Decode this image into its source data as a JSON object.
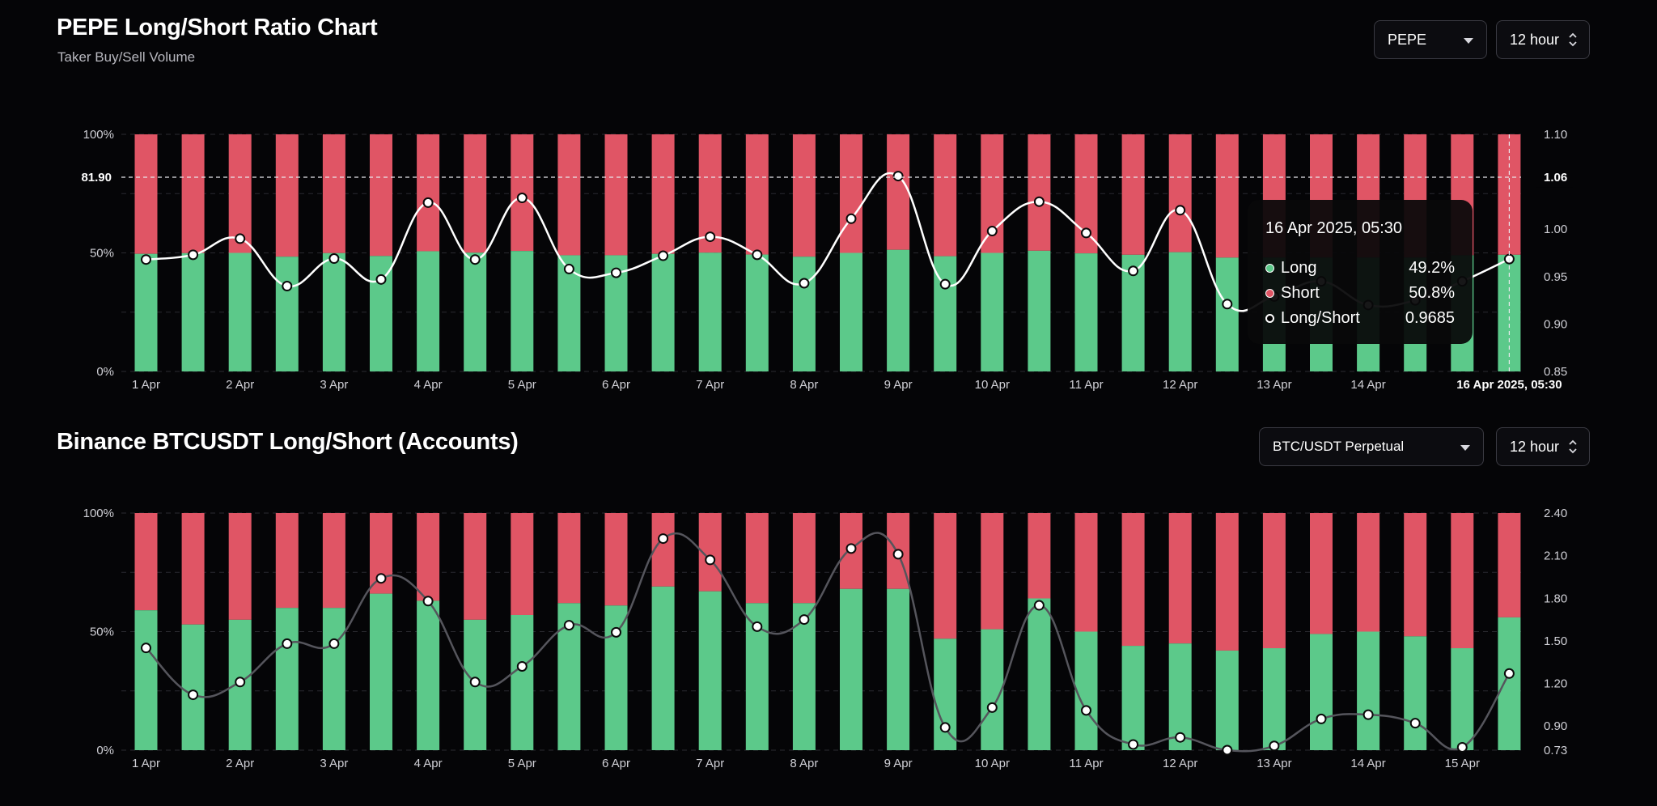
{
  "header": {
    "title": "PEPE Long/Short Ratio Chart",
    "subtitle": "Taker Buy/Sell Volume",
    "symbol_select": "PEPE",
    "interval_select": "12 hour"
  },
  "section2": {
    "title": "Binance BTCUSDT Long/Short (Accounts)",
    "pair_select": "BTC/USDT Perpetual",
    "interval_select": "12 hour"
  },
  "colors": {
    "long": "#5cc98a",
    "short": "#e05565",
    "grid": "#2a2a30",
    "line1": "#ffffff",
    "line2": "#55555c"
  },
  "tooltip": {
    "title": "16 Apr 2025, 05:30",
    "rows": [
      {
        "label": "Long",
        "value": "49.2%"
      },
      {
        "label": "Short",
        "value": "50.8%"
      },
      {
        "label": "Long/Short",
        "value": "0.9685"
      }
    ]
  },
  "chart_data": [
    {
      "type": "bar",
      "stacked": true,
      "title": "PEPE Long/Short Ratio Chart",
      "subtitle": "Taker Buy/Sell Volume",
      "x_tick_labels": [
        "1 Apr",
        "2 Apr",
        "3 Apr",
        "4 Apr",
        "5 Apr",
        "6 Apr",
        "7 Apr",
        "8 Apr",
        "9 Apr",
        "10 Apr",
        "11 Apr",
        "12 Apr",
        "13 Apr",
        "14 Apr",
        "16 Apr 2025, 05:30"
      ],
      "y_left_ticks": [
        "0%",
        "50%",
        "100%"
      ],
      "y_right_ticks": [
        "0.85",
        "0.90",
        "0.95",
        "1.00",
        "1.06",
        "1.10"
      ],
      "y_right_range": [
        0.85,
        1.1
      ],
      "crosshair_left_label": "81.90",
      "crosshair_right_label": "1.06",
      "long_pct": [
        49.6,
        49.9,
        50.0,
        48.4,
        49.9,
        48.7,
        50.7,
        50.1,
        50.8,
        49.0,
        49.0,
        49.6,
        50.1,
        49.3,
        48.4,
        50.0,
        51.3,
        48.6,
        50.0,
        50.9,
        49.8,
        49.2,
        50.3,
        48.0,
        48.0,
        48.0,
        48.0,
        48.0,
        49.0,
        49.2
      ],
      "ratio": [
        0.968,
        0.973,
        0.99,
        0.94,
        0.969,
        0.947,
        1.028,
        0.968,
        1.033,
        0.958,
        0.954,
        0.972,
        0.992,
        0.973,
        0.943,
        1.011,
        1.056,
        0.942,
        0.998,
        1.029,
        0.996,
        0.956,
        1.02,
        0.921,
        0.929,
        0.945,
        0.92,
        0.925,
        0.945,
        0.9685
      ]
    },
    {
      "type": "bar",
      "stacked": true,
      "title": "Binance BTCUSDT Long/Short (Accounts)",
      "x_tick_labels": [
        "1 Apr",
        "2 Apr",
        "3 Apr",
        "4 Apr",
        "5 Apr",
        "6 Apr",
        "7 Apr",
        "8 Apr",
        "9 Apr",
        "10 Apr",
        "11 Apr",
        "12 Apr",
        "13 Apr",
        "14 Apr",
        "15 Apr"
      ],
      "y_left_ticks": [
        "0%",
        "50%",
        "100%"
      ],
      "y_right_ticks": [
        "0.73",
        "0.90",
        "1.20",
        "1.50",
        "1.80",
        "2.10",
        "2.40"
      ],
      "y_right_range": [
        0.73,
        2.4
      ],
      "long_pct": [
        59,
        53,
        55,
        60,
        60,
        66,
        63,
        55,
        57,
        62,
        61,
        69,
        67,
        62,
        62,
        68,
        68,
        47,
        51,
        64,
        50,
        44,
        45,
        42,
        43,
        49,
        50,
        48,
        43,
        56
      ],
      "ratio": [
        1.45,
        1.12,
        1.21,
        1.48,
        1.48,
        1.94,
        1.78,
        1.21,
        1.32,
        1.61,
        1.56,
        2.22,
        2.07,
        1.6,
        1.65,
        2.15,
        2.11,
        0.89,
        1.03,
        1.75,
        1.01,
        0.77,
        0.82,
        0.73,
        0.76,
        0.95,
        0.98,
        0.92,
        0.75,
        1.27
      ]
    }
  ]
}
